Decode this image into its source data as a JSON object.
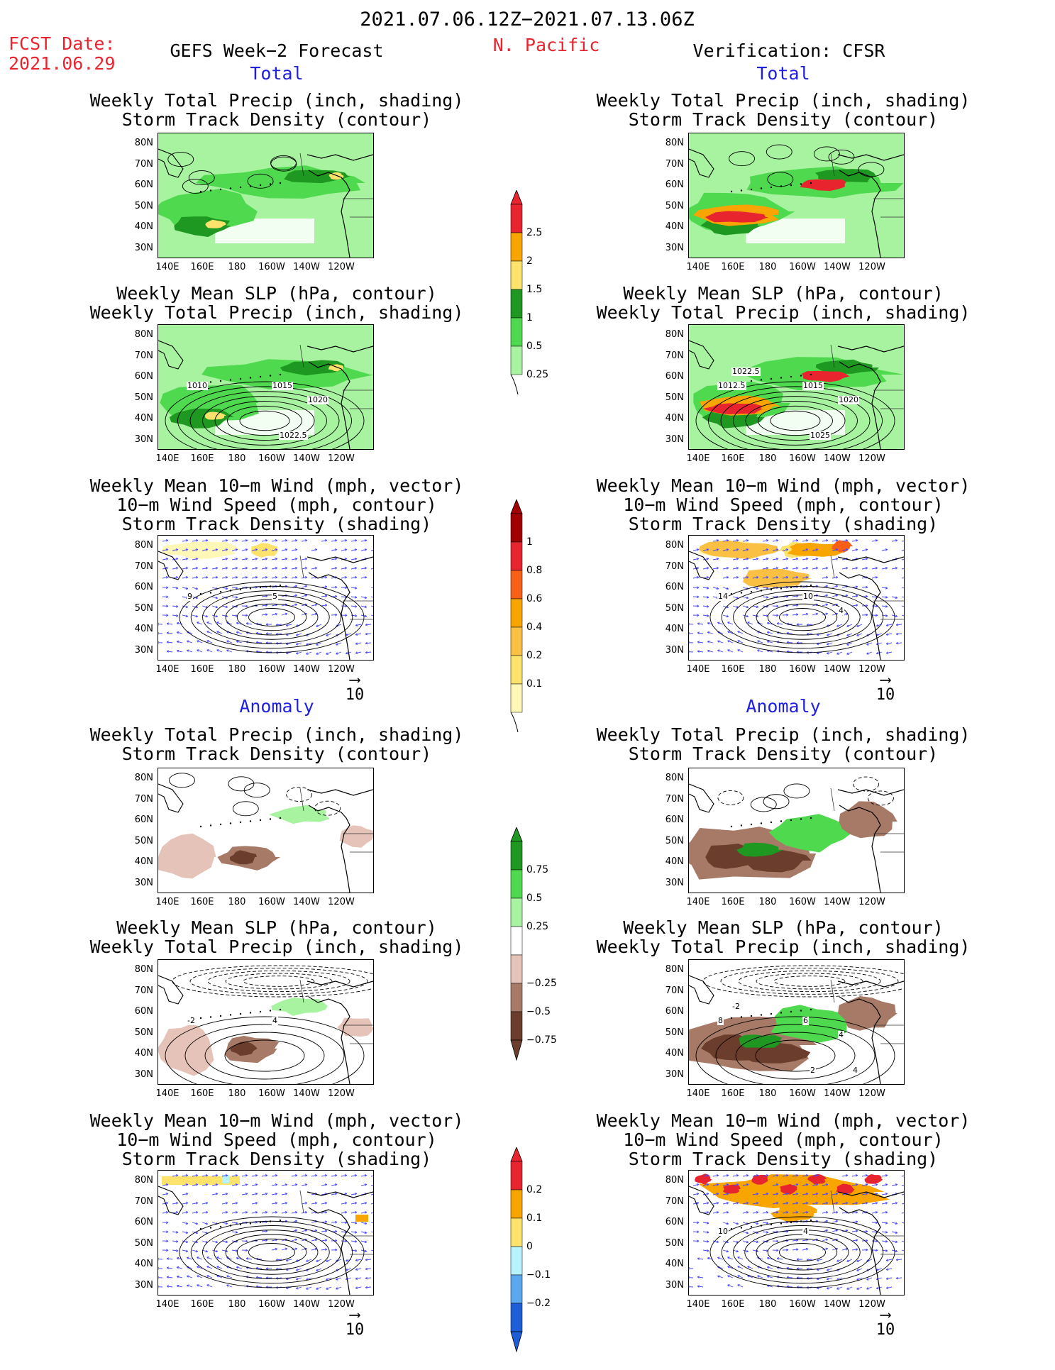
{
  "header": {
    "period": "2021.07.06.12Z−2021.07.13.06Z",
    "fcst_label": "FCST Date:",
    "fcst_date": "2021.06.29",
    "left_title": "GEFS Week−2 Forecast",
    "region": "N. Pacific",
    "right_title": "Verification: CFSR"
  },
  "sections": {
    "total": "Total",
    "anomaly": "Anomaly"
  },
  "panel_titles": {
    "precip_track": [
      "Weekly Total Precip (inch, shading)",
      "Storm Track Density (contour)"
    ],
    "slp_precip": [
      "Weekly Mean SLP (hPa, contour)",
      "Weekly Total Precip (inch, shading)"
    ],
    "wind_track": [
      "Weekly Mean 10−m Wind (mph, vector)",
      "10−m Wind Speed (mph, contour)",
      "Storm Track Density (shading)"
    ]
  },
  "axes": {
    "lat_labels": [
      "80N",
      "70N",
      "60N",
      "50N",
      "40N",
      "30N"
    ],
    "lon_labels": [
      "140E",
      "160E",
      "180",
      "160W",
      "140W",
      "120W"
    ]
  },
  "vector_ref": "10",
  "contour_labels": {
    "gefs_total_slp": [
      "1010",
      "1015",
      "1020",
      "1022.5"
    ],
    "cfsr_total_slp": [
      "1012.5",
      "1015",
      "1020",
      "1025",
      "1022.5"
    ],
    "gefs_total_wind": [
      "9",
      "5"
    ],
    "cfsr_total_wind": [
      "14",
      "10",
      "4"
    ],
    "gefs_anom_slp": [
      "-2",
      "4"
    ],
    "cfsr_anom_slp": [
      "8",
      "6",
      "4",
      "2",
      "-2",
      "4"
    ],
    "cfsr_anom_wind": [
      "10",
      "4"
    ]
  },
  "colorbars": {
    "precip_total": {
      "labels": [
        "2.5",
        "2",
        "1.5",
        "1",
        "0.5",
        "0.25"
      ],
      "colors": [
        "#e8252f",
        "#f8a500",
        "#fde36c",
        "#1e9820",
        "#4fd94e",
        "#a7f3a0"
      ]
    },
    "track_total": {
      "labels": [
        "1",
        "0.8",
        "0.6",
        "0.4",
        "0.2",
        "0.1"
      ],
      "colors": [
        "#a00000",
        "#e8252f",
        "#f86018",
        "#f8a500",
        "#f9c044",
        "#fde36c",
        "#fff7b5"
      ]
    },
    "precip_anom": {
      "labels": [
        "0.75",
        "0.5",
        "0.25",
        "−0.25",
        "−0.5",
        "−0.75"
      ],
      "colors": [
        "#1e9820",
        "#4fd94e",
        "#a7f3a0",
        "#ffffff",
        "#e6c3b8",
        "#a77a68",
        "#6b3d2c"
      ]
    },
    "track_anom": {
      "labels": [
        "0.2",
        "0.1",
        "0",
        "−0.1",
        "−0.2"
      ],
      "colors": [
        "#e8252f",
        "#f8a500",
        "#fde36c",
        "#b7f2ff",
        "#5aa8f0",
        "#1e5fd8"
      ]
    }
  }
}
